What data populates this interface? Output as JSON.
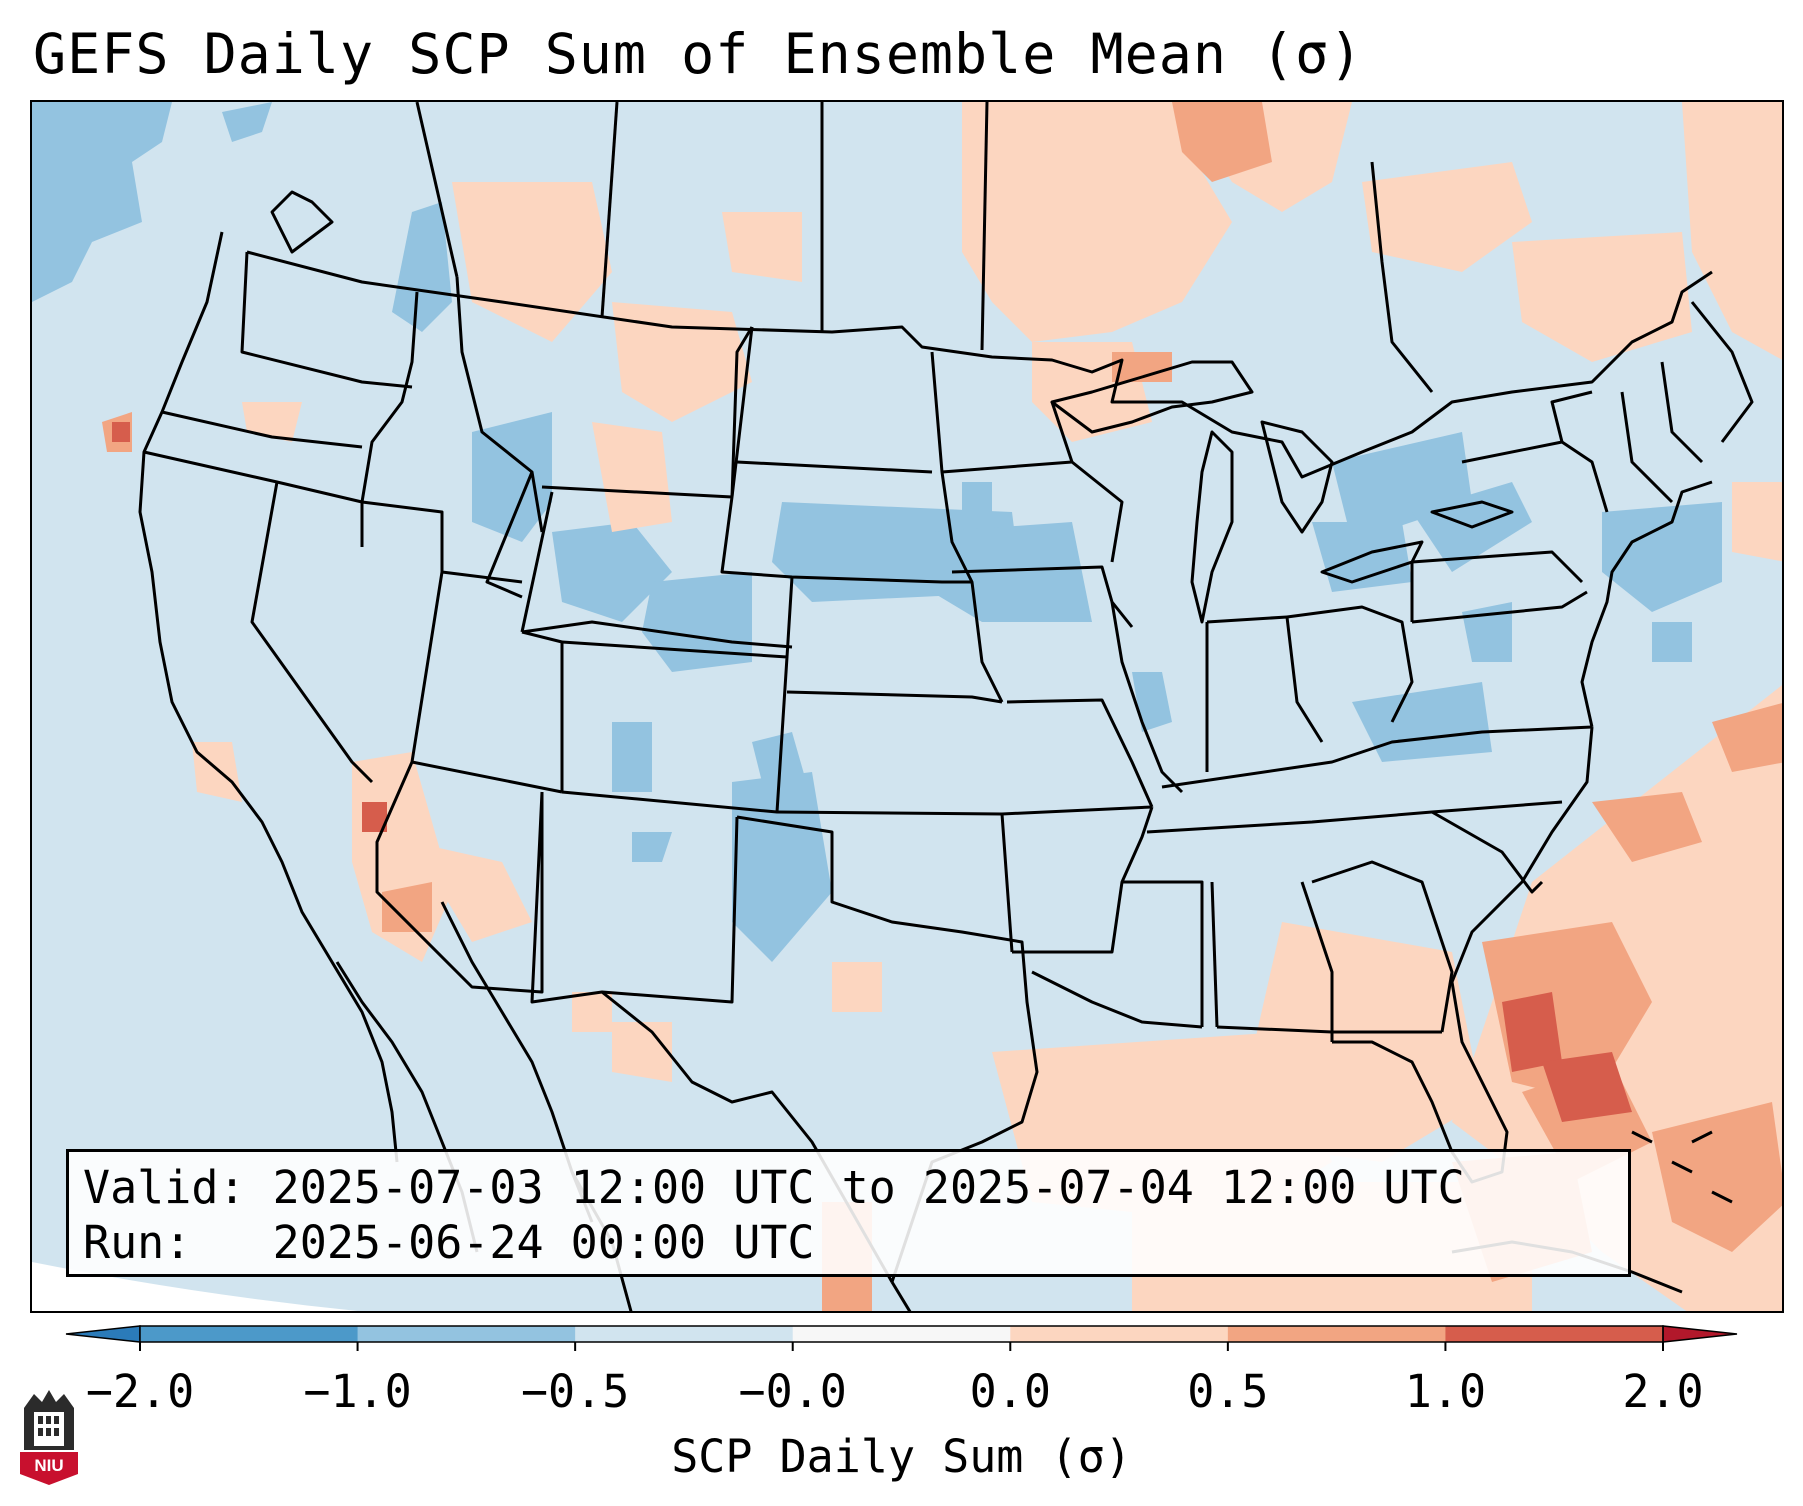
{
  "title": "GEFS Daily SCP Sum of Ensemble Mean (σ)",
  "info": {
    "valid_line": "Valid: 2025-07-03 12:00 UTC to 2025-07-04 12:00 UTC",
    "run_line": "Run:   2025-06-24 00:00 UTC"
  },
  "colorbar": {
    "label": "SCP Daily Sum (σ)",
    "ticks": [
      "−2.0",
      "−1.0",
      "−0.5",
      "−0.0",
      "0.0",
      "0.5",
      "1.0",
      "2.0"
    ],
    "bins": [
      {
        "color": "#2b7bb9"
      },
      {
        "color": "#4c99c9"
      },
      {
        "color": "#93c3e0"
      },
      {
        "color": "#d1e4ef"
      },
      {
        "color": "#f7f7f7"
      },
      {
        "color": "#fcd6c0"
      },
      {
        "color": "#f2a582"
      },
      {
        "color": "#d65d4c"
      },
      {
        "color": "#b2182b"
      }
    ]
  },
  "colors": {
    "background_value": "#d1e4ef",
    "neg_moderate": "#93c3e0",
    "pos_light": "#fcd6c0",
    "pos_moderate": "#f2a582",
    "pos_strong": "#d65d4c"
  },
  "logo": {
    "text": "NIU",
    "color": "#c8102e"
  }
}
